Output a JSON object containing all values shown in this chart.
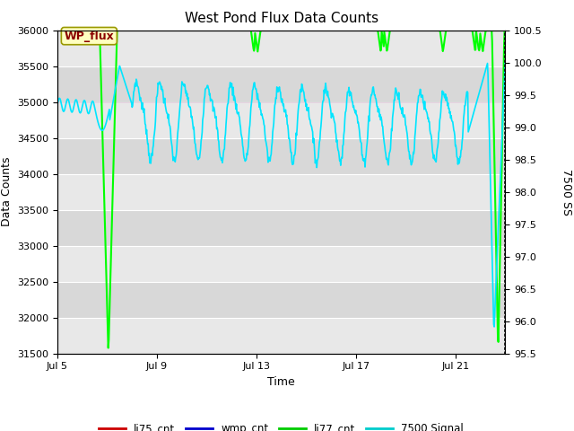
{
  "title": "West Pond Flux Data Counts",
  "xlabel": "Time",
  "ylabel_left": "Data Counts",
  "ylabel_right": "7500 SS",
  "ylim_left": [
    31500,
    36000
  ],
  "ylim_right": [
    95.5,
    100.5
  ],
  "xtick_labels": [
    "Jul 5",
    "Jul 9",
    "Jul 13",
    "Jul 17",
    "Jul 21"
  ],
  "xtick_positions": [
    0,
    4,
    8,
    12,
    16
  ],
  "xlim": [
    0,
    18
  ],
  "yticks_left": [
    31500,
    32000,
    32500,
    33000,
    33500,
    34000,
    34500,
    35000,
    35500,
    36000
  ],
  "yticks_right": [
    95.5,
    96.0,
    96.5,
    97.0,
    97.5,
    98.0,
    98.5,
    99.0,
    99.5,
    100.0,
    100.5
  ],
  "annotation_text": "WP_flux",
  "bg_outer": "#ffffff",
  "band_colors": [
    "#e8e8e8",
    "#d8d8d8"
  ],
  "band_edges_left": [
    31500,
    32000,
    32500,
    33000,
    33500,
    34000,
    34500,
    35000,
    35500,
    36000
  ],
  "color_li77": "#00ff00",
  "color_signal": "#00e5ff",
  "color_li75": "#cc0000",
  "color_wmp": "#0000cc",
  "legend_entries": [
    "li75_cnt",
    "wmp_cnt",
    "li77_cnt",
    "7500 Signal"
  ],
  "legend_colors": [
    "#cc0000",
    "#0000cc",
    "#00cc00",
    "#00cccc"
  ],
  "title_fontsize": 11,
  "label_fontsize": 9,
  "tick_fontsize": 8
}
